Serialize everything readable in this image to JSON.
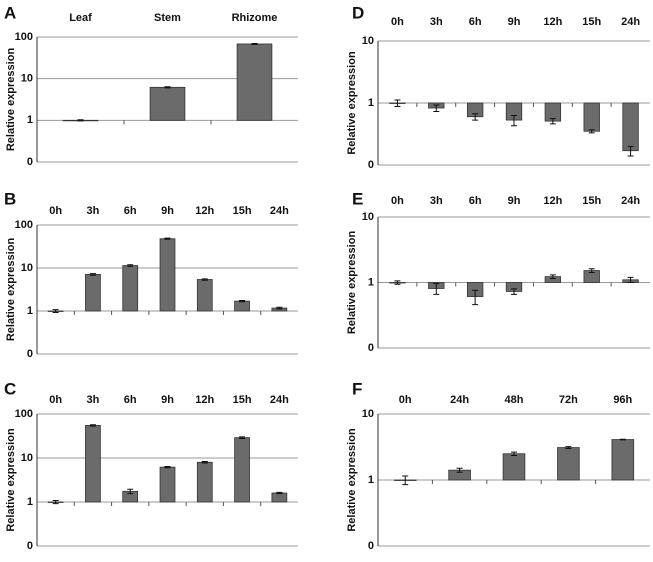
{
  "chart_data": [
    {
      "type": "bar",
      "label": "A",
      "ylabel": "Relative expression",
      "log_scale": true,
      "grid": true,
      "color": "#6b6b6b",
      "categories": [
        "Leaf",
        "Stem",
        "Rhizome"
      ],
      "values": [
        1,
        6.2,
        68
      ],
      "errors": [
        0.03,
        0.2,
        2
      ],
      "ylim": [
        0.1,
        100
      ],
      "yticks": [
        {
          "value": 0.1,
          "label": "0"
        },
        1,
        10,
        100
      ]
    },
    {
      "type": "bar",
      "label": "B",
      "ylabel": "Relative expression",
      "log_scale": true,
      "grid": true,
      "color": "#6b6b6b",
      "categories": [
        "0h",
        "3h",
        "6h",
        "9h",
        "12h",
        "15h",
        "24h"
      ],
      "values": [
        1,
        7.1,
        11.4,
        48,
        5.4,
        1.7,
        1.17
      ],
      "errors": [
        0.08,
        0.3,
        0.5,
        1.5,
        0.2,
        0.06,
        0.05
      ],
      "ylim": [
        0.1,
        100
      ],
      "yticks": [
        {
          "value": 0.1,
          "label": "0"
        },
        1,
        10,
        100
      ]
    },
    {
      "type": "bar",
      "label": "C",
      "ylabel": "Relative expression",
      "log_scale": true,
      "grid": true,
      "color": "#6b6b6b",
      "categories": [
        "0h",
        "3h",
        "6h",
        "9h",
        "12h",
        "15h",
        "24h"
      ],
      "values": [
        1,
        55,
        1.75,
        6.2,
        8,
        29,
        1.6
      ],
      "errors": [
        0.08,
        2,
        0.2,
        0.2,
        0.3,
        1.2,
        0.05
      ],
      "ylim": [
        0.1,
        100
      ],
      "yticks": [
        {
          "value": 0.1,
          "label": "0"
        },
        1,
        10,
        100
      ]
    },
    {
      "type": "bar",
      "label": "D",
      "ylabel": "Relative expression",
      "log_scale": true,
      "grid": true,
      "color": "#6b6b6b",
      "categories": [
        "0h",
        "3h",
        "6h",
        "9h",
        "12h",
        "15h",
        "24h"
      ],
      "values": [
        1,
        0.83,
        0.6,
        0.53,
        0.51,
        0.35,
        0.17
      ],
      "errors": [
        0.12,
        0.1,
        0.07,
        0.1,
        0.05,
        0.02,
        0.03
      ],
      "ylim": [
        0.1,
        10
      ],
      "yticks": [
        {
          "value": 0.1,
          "label": "0"
        },
        1,
        10
      ]
    },
    {
      "type": "bar",
      "label": "E",
      "ylabel": "Relative expression",
      "log_scale": true,
      "grid": true,
      "color": "#6b6b6b",
      "categories": [
        "0h",
        "3h",
        "6h",
        "9h",
        "12h",
        "15h",
        "24h"
      ],
      "values": [
        1,
        0.81,
        0.61,
        0.73,
        1.23,
        1.52,
        1.1
      ],
      "errors": [
        0.06,
        0.15,
        0.15,
        0.07,
        0.08,
        0.1,
        0.1
      ],
      "ylim": [
        0.1,
        10
      ],
      "yticks": [
        {
          "value": 0.1,
          "label": "0"
        },
        1,
        10
      ]
    },
    {
      "type": "bar",
      "label": "F",
      "ylabel": "Relative expression",
      "log_scale": true,
      "grid": true,
      "color": "#6b6b6b",
      "categories": [
        "0h",
        "24h",
        "48h",
        "72h",
        "96h"
      ],
      "values": [
        1,
        1.41,
        2.5,
        3.1,
        4.1
      ],
      "errors": [
        0.15,
        0.1,
        0.15,
        0.1,
        0.05
      ],
      "ylim": [
        0.1,
        10
      ],
      "yticks": [
        {
          "value": 0.1,
          "label": "0"
        },
        1,
        10
      ]
    }
  ]
}
